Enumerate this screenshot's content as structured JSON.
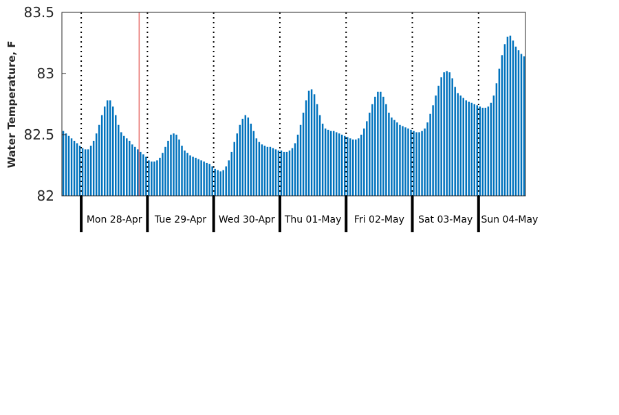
{
  "chart_data": {
    "type": "bar",
    "title": "",
    "xlabel": "",
    "ylabel": "Water Temperature, F",
    "ylim": [
      82,
      83.5
    ],
    "yticks": [
      82,
      82.5,
      83,
      83.5
    ],
    "ytick_labels": [
      "82",
      "82.5",
      "83",
      "83.5"
    ],
    "grid": false,
    "bar_color": "#0072bd",
    "marker_color": "#e8706d",
    "hours_before_first_day": 7,
    "current_time_hours_from_start": 28,
    "day_labels": [
      "Mon 28-Apr",
      "Tue 29-Apr",
      "Wed 30-Apr",
      "Thu 01-May",
      "Fri 02-May",
      "Sat 03-May",
      "Sun 04-May"
    ],
    "values": [
      82.53,
      82.51,
      82.49,
      82.47,
      82.45,
      82.43,
      82.41,
      82.39,
      82.38,
      82.38,
      82.41,
      82.45,
      82.51,
      82.58,
      82.66,
      82.73,
      82.78,
      82.78,
      82.73,
      82.66,
      82.58,
      82.52,
      82.49,
      82.47,
      82.45,
      82.42,
      82.4,
      82.38,
      82.36,
      82.34,
      82.32,
      82.29,
      82.28,
      82.28,
      82.29,
      82.31,
      82.35,
      82.4,
      82.45,
      82.5,
      82.51,
      82.5,
      82.46,
      82.41,
      82.37,
      82.35,
      82.33,
      82.32,
      82.31,
      82.3,
      82.29,
      82.28,
      82.27,
      82.26,
      82.24,
      82.22,
      82.21,
      82.2,
      82.21,
      82.24,
      82.29,
      82.36,
      82.44,
      82.51,
      82.58,
      82.63,
      82.66,
      82.64,
      82.59,
      82.53,
      82.47,
      82.44,
      82.42,
      82.41,
      82.4,
      82.4,
      82.39,
      82.38,
      82.37,
      82.37,
      82.36,
      82.36,
      82.37,
      82.39,
      82.43,
      82.5,
      82.58,
      82.68,
      82.78,
      82.86,
      82.87,
      82.83,
      82.75,
      82.66,
      82.59,
      82.55,
      82.54,
      82.53,
      82.53,
      82.52,
      82.51,
      82.5,
      82.49,
      82.48,
      82.47,
      82.46,
      82.46,
      82.47,
      82.5,
      82.55,
      82.61,
      82.68,
      82.75,
      82.81,
      82.85,
      82.85,
      82.81,
      82.75,
      82.68,
      82.64,
      82.62,
      82.6,
      82.58,
      82.57,
      82.56,
      82.55,
      82.54,
      82.53,
      82.52,
      82.52,
      82.53,
      82.55,
      82.6,
      82.67,
      82.74,
      82.82,
      82.9,
      82.97,
      83.01,
      83.02,
      83.01,
      82.96,
      82.89,
      82.84,
      82.82,
      82.8,
      82.78,
      82.77,
      82.76,
      82.75,
      82.74,
      82.73,
      82.72,
      82.72,
      82.73,
      82.76,
      82.82,
      82.92,
      83.04,
      83.15,
      83.24,
      83.3,
      83.31,
      83.27,
      83.22,
      83.19,
      83.16,
      83.14
    ]
  }
}
